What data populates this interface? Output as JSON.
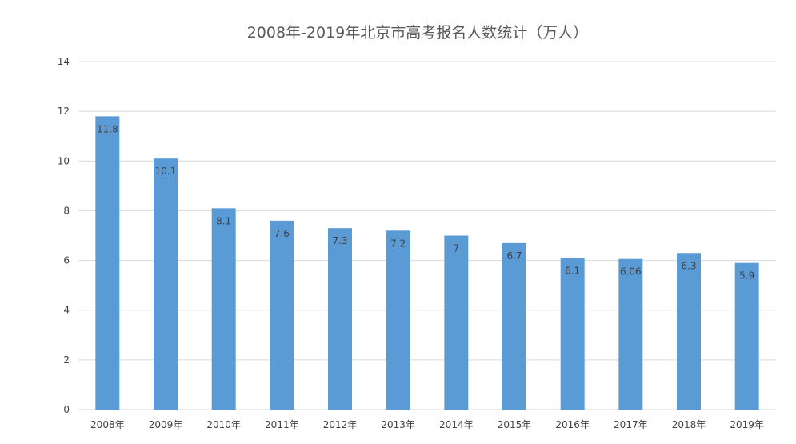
{
  "chart_data": {
    "type": "bar",
    "title": "2008年-2019年北京市高考报名人数统计（万人）",
    "xlabel": "",
    "ylabel": "",
    "categories": [
      "2008年",
      "2009年",
      "2010年",
      "2011年",
      "2012年",
      "2013年",
      "2014年",
      "2015年",
      "2016年",
      "2017年",
      "2018年",
      "2019年"
    ],
    "values": [
      11.8,
      10.1,
      8.1,
      7.6,
      7.3,
      7.2,
      7,
      6.7,
      6.1,
      6.06,
      6.3,
      5.9
    ],
    "data_labels": [
      "11.8",
      "10.1",
      "8.1",
      "7.6",
      "7.3",
      "7.2",
      "7",
      "6.7",
      "6.1",
      "6.06",
      "6.3",
      "5.9"
    ],
    "yticks": [
      "0",
      "2",
      "4",
      "6",
      "8",
      "10",
      "12",
      "14"
    ],
    "ylim": [
      0,
      14
    ],
    "grid": true,
    "legend": "none",
    "bar_color": "#5b9bd5",
    "grid_color": "#d9d9d9"
  }
}
